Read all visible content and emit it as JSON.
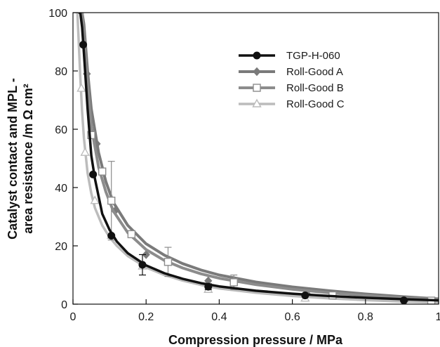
{
  "chart_data": {
    "type": "line",
    "title": "",
    "xlabel": "Compression pressure / MPa",
    "ylabel_lines": [
      "Catalyst contact and MPL -",
      "area resistance /m Ω cm²"
    ],
    "xlim": [
      0,
      1
    ],
    "ylim": [
      0,
      100
    ],
    "x_ticks": [
      "0",
      "0.2",
      "0.4",
      "0.6",
      "0.8",
      "1"
    ],
    "y_ticks": [
      "0",
      "20",
      "40",
      "60",
      "80",
      "100"
    ],
    "grid": false,
    "legend_position": "top-right",
    "series": [
      {
        "name": "TGP-H-060",
        "color": "#111111",
        "marker": "filled-circle",
        "points": [
          {
            "x": 0.028,
            "y": 89,
            "err": 0
          },
          {
            "x": 0.055,
            "y": 44.5,
            "err": 0
          },
          {
            "x": 0.105,
            "y": 23.5,
            "err": 0
          },
          {
            "x": 0.19,
            "y": 13.5,
            "err": 3.5
          },
          {
            "x": 0.37,
            "y": 6,
            "err": 1
          },
          {
            "x": 0.635,
            "y": 3,
            "err": 0
          },
          {
            "x": 0.905,
            "y": 1.3,
            "err": 0
          }
        ],
        "curve": [
          [
            0.015,
            100
          ],
          [
            0.02,
            100
          ],
          [
            0.025,
            95
          ],
          [
            0.03,
            86
          ],
          [
            0.04,
            67
          ],
          [
            0.05,
            51
          ],
          [
            0.06,
            43
          ],
          [
            0.08,
            31
          ],
          [
            0.1,
            25.5
          ],
          [
            0.12,
            21.5
          ],
          [
            0.15,
            17.5
          ],
          [
            0.2,
            13.3
          ],
          [
            0.25,
            10.6
          ],
          [
            0.3,
            8.7
          ],
          [
            0.35,
            7.2
          ],
          [
            0.4,
            6.1
          ],
          [
            0.5,
            4.6
          ],
          [
            0.6,
            3.6
          ],
          [
            0.7,
            2.8
          ],
          [
            0.8,
            2.2
          ],
          [
            0.9,
            1.7
          ],
          [
            1.0,
            1.3
          ]
        ]
      },
      {
        "name": "Roll-Good A",
        "color": "#7a7a7a",
        "marker": "filled-diamond",
        "points": [
          {
            "x": 0.038,
            "y": 79,
            "err": 0
          },
          {
            "x": 0.065,
            "y": 55,
            "err": 0
          },
          {
            "x": 0.115,
            "y": 32,
            "err": 0
          },
          {
            "x": 0.2,
            "y": 17,
            "err": 0
          },
          {
            "x": 0.37,
            "y": 8,
            "err": 0
          },
          {
            "x": 0.64,
            "y": 3.5,
            "err": 0
          },
          {
            "x": 0.91,
            "y": 1.5,
            "err": 0
          }
        ],
        "curve": [
          [
            0.02,
            100
          ],
          [
            0.025,
            100
          ],
          [
            0.03,
            96
          ],
          [
            0.04,
            80
          ],
          [
            0.05,
            67
          ],
          [
            0.07,
            52
          ],
          [
            0.09,
            42
          ],
          [
            0.11,
            35
          ],
          [
            0.15,
            27
          ],
          [
            0.2,
            20.7
          ],
          [
            0.25,
            16.8
          ],
          [
            0.3,
            13.9
          ],
          [
            0.35,
            11.7
          ],
          [
            0.4,
            10
          ],
          [
            0.5,
            7.6
          ],
          [
            0.6,
            5.9
          ],
          [
            0.7,
            4.6
          ],
          [
            0.8,
            3.5
          ],
          [
            0.9,
            2.6
          ],
          [
            1.0,
            1.8
          ]
        ]
      },
      {
        "name": "Roll-Good B",
        "color": "#8c8c8c",
        "marker": "open-square",
        "points": [
          {
            "x": 0.05,
            "y": 58,
            "err": 0
          },
          {
            "x": 0.08,
            "y": 45.5,
            "err": 0
          },
          {
            "x": 0.105,
            "y": 35.5,
            "err": 13.5
          },
          {
            "x": 0.16,
            "y": 24,
            "err": 0
          },
          {
            "x": 0.26,
            "y": 14.5,
            "err": 5
          },
          {
            "x": 0.44,
            "y": 7.5,
            "err": 2.5
          },
          {
            "x": 0.71,
            "y": 3,
            "err": 0
          },
          {
            "x": 0.98,
            "y": 1.2,
            "err": 0
          }
        ],
        "curve": [
          [
            0.02,
            100
          ],
          [
            0.025,
            100
          ],
          [
            0.03,
            92
          ],
          [
            0.04,
            75
          ],
          [
            0.05,
            61
          ],
          [
            0.07,
            47
          ],
          [
            0.09,
            38.5
          ],
          [
            0.11,
            32
          ],
          [
            0.15,
            24.5
          ],
          [
            0.2,
            18.7
          ],
          [
            0.25,
            15
          ],
          [
            0.3,
            12.4
          ],
          [
            0.35,
            10.4
          ],
          [
            0.4,
            8.9
          ],
          [
            0.5,
            6.7
          ],
          [
            0.6,
            5.1
          ],
          [
            0.7,
            3.9
          ],
          [
            0.8,
            3
          ],
          [
            0.9,
            2.2
          ],
          [
            1.0,
            1.5
          ]
        ]
      },
      {
        "name": "Roll-Good C",
        "color": "#bcbcbc",
        "marker": "open-triangle",
        "points": [
          {
            "x": 0.023,
            "y": 74,
            "err": 0
          },
          {
            "x": 0.033,
            "y": 52,
            "err": 0
          },
          {
            "x": 0.06,
            "y": 35.5,
            "err": 0
          },
          {
            "x": 0.105,
            "y": 23.5,
            "err": 0
          },
          {
            "x": 0.19,
            "y": 13,
            "err": 0
          },
          {
            "x": 0.37,
            "y": 5,
            "err": 0
          },
          {
            "x": 0.635,
            "y": 2,
            "err": 0
          },
          {
            "x": 0.905,
            "y": 0.5,
            "err": 0
          }
        ],
        "curve": [
          [
            0.012,
            100
          ],
          [
            0.015,
            92
          ],
          [
            0.02,
            78
          ],
          [
            0.025,
            66
          ],
          [
            0.03,
            57
          ],
          [
            0.04,
            45
          ],
          [
            0.05,
            38
          ],
          [
            0.06,
            33
          ],
          [
            0.08,
            27
          ],
          [
            0.1,
            23
          ],
          [
            0.12,
            20
          ],
          [
            0.15,
            16.5
          ],
          [
            0.2,
            12.6
          ],
          [
            0.25,
            10
          ],
          [
            0.3,
            8.1
          ],
          [
            0.35,
            6.6
          ],
          [
            0.4,
            5.4
          ],
          [
            0.5,
            3.9
          ],
          [
            0.6,
            2.8
          ],
          [
            0.7,
            2
          ],
          [
            0.8,
            1.4
          ],
          [
            0.9,
            0.9
          ],
          [
            1.0,
            0.6
          ]
        ]
      }
    ]
  }
}
